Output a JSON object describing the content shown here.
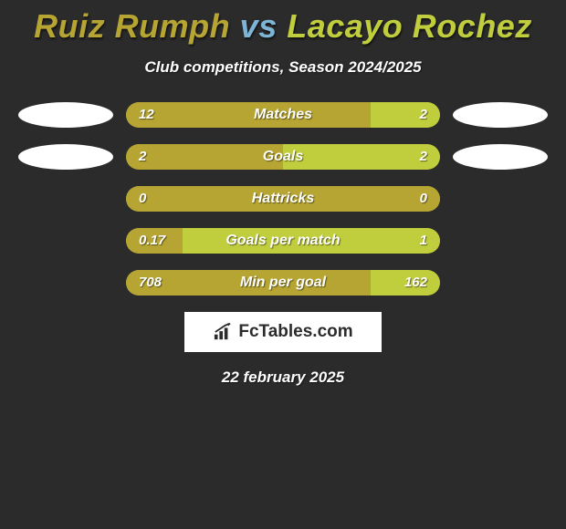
{
  "title": {
    "player1": "Ruiz Rumph",
    "vs": "vs",
    "player2": "Lacayo Rochez",
    "player1_color": "#b6a532",
    "vs_color": "#7eb4d6",
    "player2_color": "#c0cd3d"
  },
  "subtitle": "Club competitions, Season 2024/2025",
  "colors": {
    "background": "#2b2b2b",
    "bar_left": "#b6a532",
    "bar_right": "#c0cd3d",
    "ellipse": "#ffffff",
    "text": "#ffffff"
  },
  "bar_track_width": 344,
  "bars": [
    {
      "label": "Matches",
      "left_value": "12",
      "right_value": "2",
      "left_pct": 78,
      "right_pct": 22,
      "left_ellipse": true,
      "right_ellipse": true
    },
    {
      "label": "Goals",
      "left_value": "2",
      "right_value": "2",
      "left_pct": 50,
      "right_pct": 50,
      "left_ellipse": true,
      "right_ellipse": true
    },
    {
      "label": "Hattricks",
      "left_value": "0",
      "right_value": "0",
      "left_pct": 100,
      "right_pct": 0,
      "left_ellipse": false,
      "right_ellipse": false
    },
    {
      "label": "Goals per match",
      "left_value": "0.17",
      "right_value": "1",
      "left_pct": 18,
      "right_pct": 82,
      "left_ellipse": false,
      "right_ellipse": false
    },
    {
      "label": "Min per goal",
      "left_value": "708",
      "right_value": "162",
      "left_pct": 78,
      "right_pct": 22,
      "left_ellipse": false,
      "right_ellipse": false
    }
  ],
  "branding": "FcTables.com",
  "date": "22 february 2025"
}
